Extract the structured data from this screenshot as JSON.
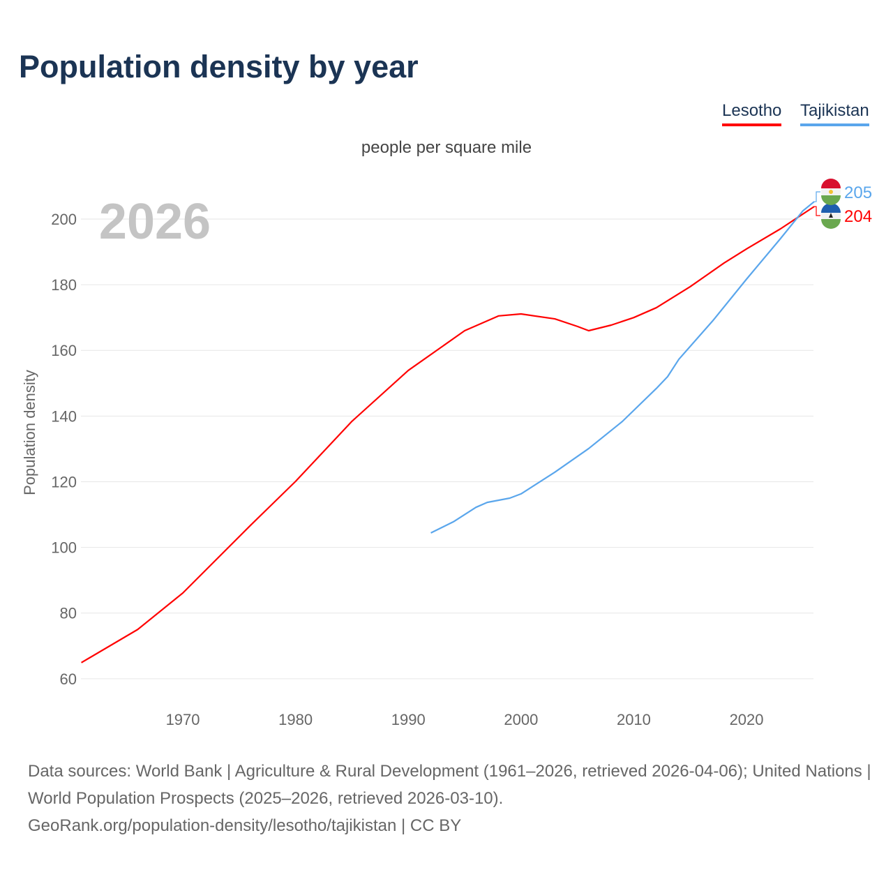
{
  "chart_data": {
    "type": "line",
    "title": "Population density by year",
    "subtitle": "people per square mile",
    "ylabel": "Population density",
    "xlabel": "",
    "year_label": "2026",
    "xlim": [
      1961,
      2026
    ],
    "ylim": [
      60,
      210
    ],
    "xticks": [
      1970,
      1980,
      1990,
      2000,
      2010,
      2020
    ],
    "yticks": [
      60,
      80,
      100,
      120,
      140,
      160,
      180,
      200
    ],
    "grid": true,
    "legend_position": "top-right",
    "series": [
      {
        "name": "Lesotho",
        "color": "#ff0000",
        "end_label": "204",
        "x": [
          1961,
          1966,
          1970,
          1976,
          1980,
          1985,
          1990,
          1995,
          1998,
          2000,
          2003,
          2005,
          2006,
          2008,
          2010,
          2012,
          2015,
          2018,
          2020,
          2023,
          2026
        ],
        "y": [
          64.9,
          75.0,
          86.1,
          106.7,
          120.1,
          138.4,
          153.9,
          166.0,
          170.5,
          171.1,
          169.6,
          167.3,
          166.0,
          167.7,
          170.0,
          173.0,
          179.4,
          186.6,
          190.9,
          197.0,
          203.8
        ]
      },
      {
        "name": "Tajikistan",
        "color": "#5aa6ec",
        "end_label": "205",
        "x": [
          1992,
          1994,
          1996,
          1997,
          1999,
          2000,
          2003,
          2006,
          2009,
          2012,
          2013,
          2014,
          2017,
          2020,
          2023,
          2025,
          2026
        ],
        "y": [
          104.4,
          107.8,
          112.2,
          113.7,
          115.0,
          116.3,
          122.9,
          130.1,
          138.4,
          148.4,
          152.0,
          157.3,
          169.0,
          181.7,
          194.0,
          202.5,
          205.3
        ]
      }
    ]
  },
  "source_text": "Data sources: World Bank | Agriculture & Rural Development (1961–2026, retrieved 2026-04-06); United Nations | World Population Prospects (2025–2026, retrieved 2026-03-10).",
  "source_link": "GeoRank.org/population-density/lesotho/tajikistan | CC BY"
}
